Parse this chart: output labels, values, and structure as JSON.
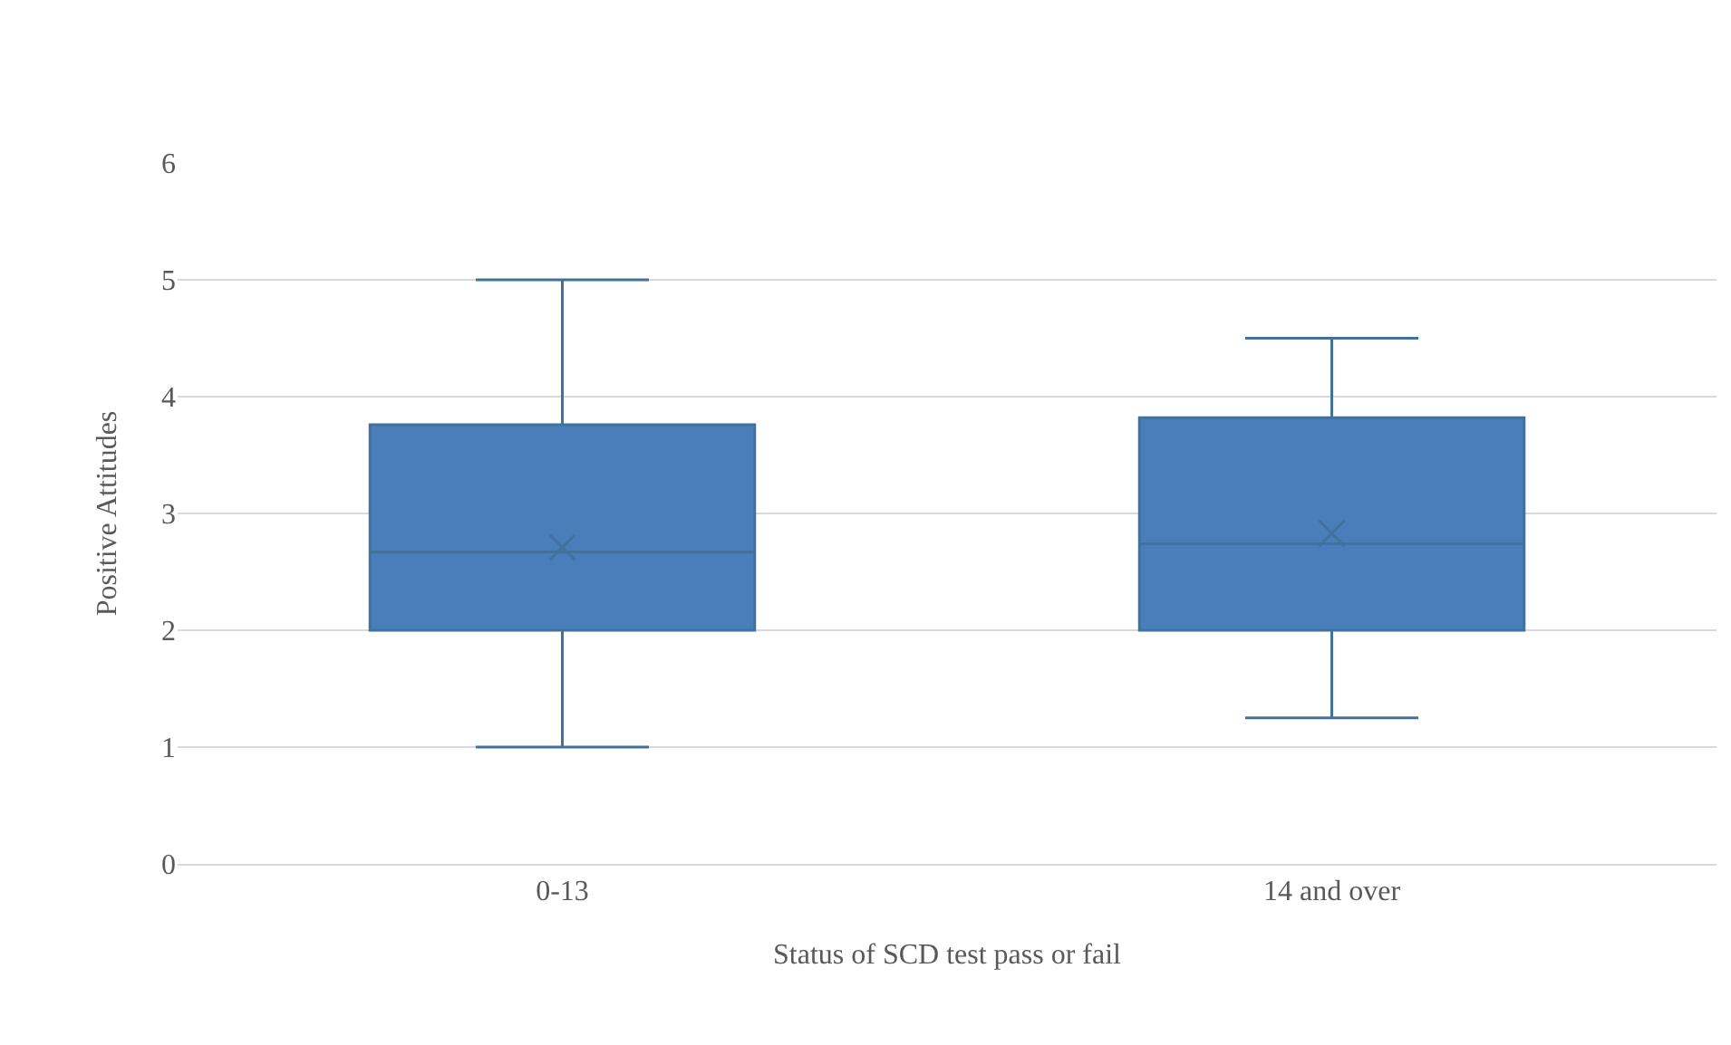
{
  "chart_data": {
    "type": "box",
    "xlabel": "Status of SCD test pass or fail",
    "ylabel": "Positive Attitudes",
    "categories": [
      "0-13",
      "14 and over"
    ],
    "color": "#4a7ebb",
    "boxes": [
      {
        "low": 1,
        "q1": 2,
        "median": 2.67,
        "q3": 3.76,
        "high": 5,
        "mean": 2.71
      },
      {
        "low": 1.25,
        "q1": 2,
        "median": 2.74,
        "q3": 3.82,
        "high": 4.5,
        "mean": 2.83
      }
    ],
    "ylim": [
      0,
      6
    ],
    "yticks": [
      0,
      1,
      2,
      3,
      4,
      5,
      6
    ],
    "grid": "y"
  }
}
